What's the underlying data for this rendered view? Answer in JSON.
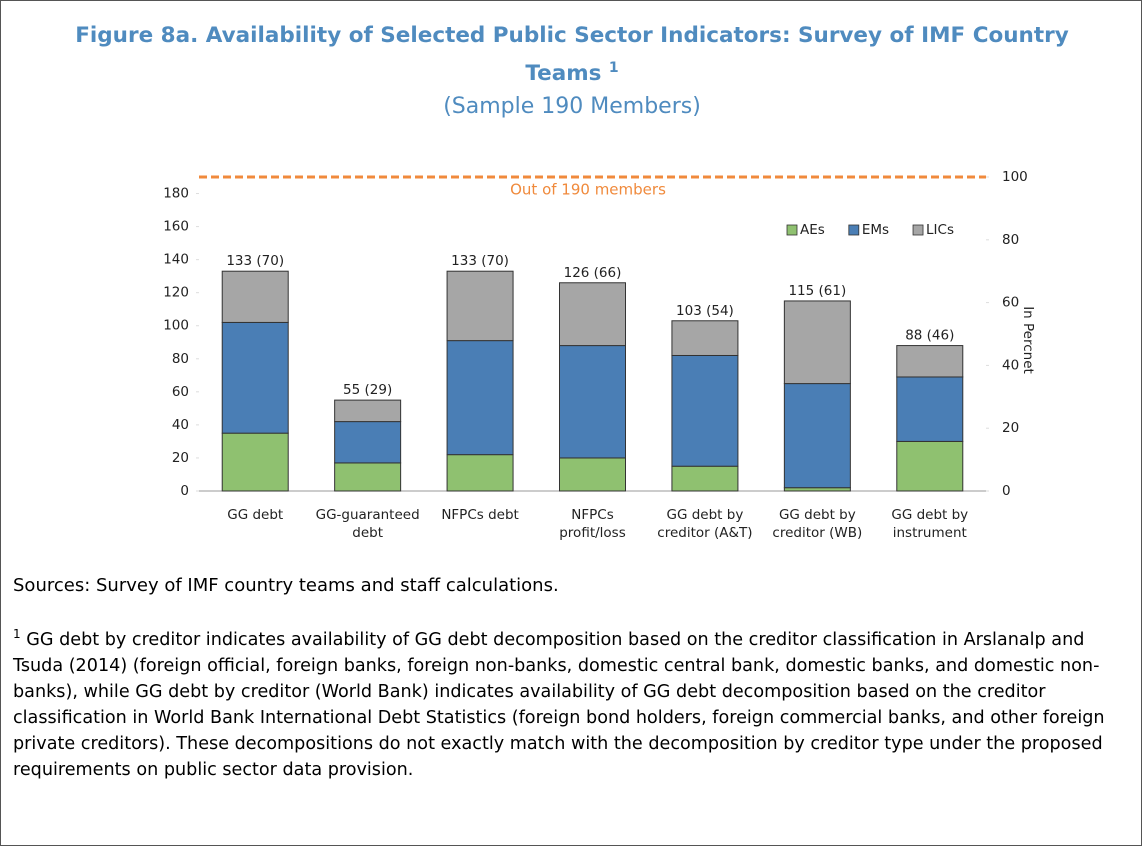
{
  "title": "Figure 8a. Availability of Selected Public Sector Indicators: Survey of IMF Country Teams",
  "title_note": "1",
  "subtitle": "(Sample 190 Members)",
  "chart_data": {
    "type": "stacked_bar",
    "categories": [
      [
        "GG debt"
      ],
      [
        "GG-guaranteed",
        "debt"
      ],
      [
        "NFPCs debt"
      ],
      [
        "NFPCs",
        "profit/loss"
      ],
      [
        "GG debt by",
        "creditor (A&T)"
      ],
      [
        "GG debt by",
        "creditor (WB)"
      ],
      [
        "GG debt by",
        "instrument"
      ]
    ],
    "series": [
      {
        "name": "AEs",
        "color": "#8fc170",
        "values": [
          35,
          17,
          22,
          20,
          15,
          2,
          30
        ]
      },
      {
        "name": "EMs",
        "color": "#4a7eb5",
        "values": [
          67,
          25,
          69,
          68,
          67,
          63,
          39
        ]
      },
      {
        "name": "LICs",
        "color": "#a6a6a6",
        "values": [
          31,
          13,
          42,
          38,
          21,
          50,
          19
        ]
      }
    ],
    "total_labels": [
      "133 (70)",
      "55 (29)",
      "133 (70)",
      "126 (66)",
      "103 (54)",
      "115 (61)",
      "88 (46)"
    ],
    "ylim": [
      0,
      190
    ],
    "yticks": [
      0,
      20,
      40,
      60,
      80,
      100,
      120,
      140,
      160,
      180
    ],
    "y2lim": [
      0,
      100
    ],
    "y2ticks": [
      0,
      20,
      40,
      60,
      80,
      100
    ],
    "y2label": "In Percnet",
    "reference_line": {
      "value": 190,
      "label": "Out of 190 members",
      "color": "#f08a3c"
    },
    "legend": "upper right",
    "grid": false
  },
  "sources": "Sources: Survey of IMF country teams and staff calculations.",
  "footnote": {
    "marker": "1",
    "text": "GG debt by creditor indicates availability of GG debt decomposition based on the creditor classification in Arslanalp and Tsuda (2014) (foreign official, foreign banks, foreign non-banks, domestic central bank, domestic banks, and domestic non-banks), while GG debt by creditor (World Bank) indicates availability of GG debt decomposition based on the creditor classification in World Bank International Debt Statistics (foreign bond holders, foreign commercial banks, and other foreign private creditors). These decompositions do not exactly match with the decomposition by creditor type under the proposed requirements on public sector data provision."
  }
}
